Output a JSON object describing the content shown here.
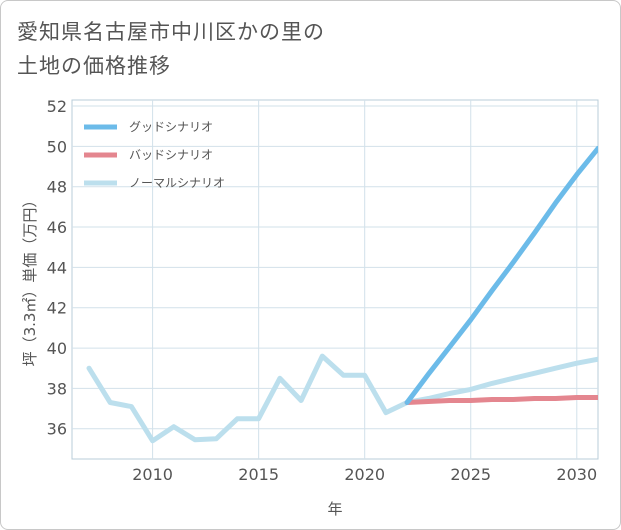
{
  "title": "愛知県名古屋市中川区かの里の\n土地の価格推移",
  "chart_data": {
    "type": "line",
    "title": "愛知県名古屋市中川区かの里の土地の価格推移",
    "xlabel": "年",
    "ylabel": "坪（3.3㎡）単価（万円）",
    "xlim": [
      2006.2,
      2031
    ],
    "ylim": [
      34.5,
      52.3
    ],
    "xticks": [
      2010,
      2015,
      2020,
      2025,
      2030
    ],
    "yticks": [
      36,
      38,
      40,
      42,
      44,
      46,
      48,
      50,
      52
    ],
    "grid": true,
    "legend_position": "top-left",
    "series": [
      {
        "name": "グッドシナリオ",
        "color": "#6cbbe9",
        "x": [
          2022,
          2023,
          2024,
          2025,
          2026,
          2027,
          2028,
          2029,
          2030,
          2031
        ],
        "y": [
          37.3,
          38.7,
          40.05,
          41.4,
          42.85,
          44.25,
          45.7,
          47.2,
          48.6,
          49.9
        ]
      },
      {
        "name": "バッドシナリオ",
        "color": "#e4868f",
        "x": [
          2022,
          2023,
          2024,
          2025,
          2026,
          2027,
          2028,
          2029,
          2030,
          2031
        ],
        "y": [
          37.3,
          37.35,
          37.4,
          37.4,
          37.45,
          37.45,
          37.5,
          37.5,
          37.55,
          37.55
        ]
      },
      {
        "name": "ノーマルシナリオ",
        "color": "#bcdfed",
        "x": [
          2007,
          2008,
          2009,
          2010,
          2011,
          2012,
          2013,
          2014,
          2015,
          2016,
          2017,
          2018,
          2019,
          2020,
          2021,
          2022,
          2023,
          2024,
          2025,
          2026,
          2027,
          2028,
          2029,
          2030,
          2031
        ],
        "y": [
          39.0,
          37.3,
          37.1,
          35.4,
          36.1,
          35.45,
          35.5,
          36.5,
          36.5,
          38.5,
          37.4,
          39.6,
          38.65,
          38.65,
          36.8,
          37.3,
          37.5,
          37.75,
          37.95,
          38.25,
          38.5,
          38.75,
          39.0,
          39.25,
          39.45
        ]
      }
    ]
  }
}
